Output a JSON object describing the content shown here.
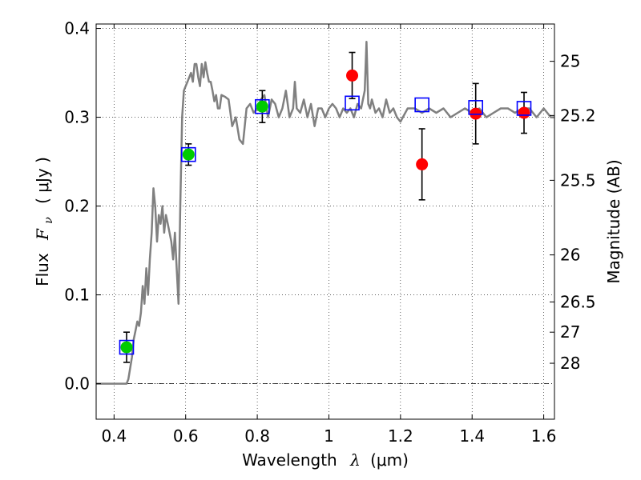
{
  "chart_data": {
    "type": "scatter",
    "title": "",
    "xlabel_prefix": "Wavelength",
    "xlabel_symbol": "λ",
    "xlabel_unit": "(μm)",
    "ylabel_prefix": "Flux",
    "ylabel_symbol": "F",
    "ylabel_subscript": "ν",
    "ylabel_unit": "( μJy )",
    "y2label": "Magnitude (AB)",
    "xlim": [
      0.35,
      1.63
    ],
    "ylim": [
      -0.04,
      0.405
    ],
    "x_ticks": [
      0.4,
      0.6,
      0.8,
      1.0,
      1.2,
      1.4,
      1.6
    ],
    "x_tick_labels": [
      "0.4",
      "0.6",
      "0.8",
      "1",
      "1.2",
      "1.4",
      "1.6"
    ],
    "y_ticks": [
      0.0,
      0.1,
      0.2,
      0.3,
      0.4
    ],
    "y_tick_labels": [
      "0.0",
      "0.1",
      "0.2",
      "0.3",
      "0.4"
    ],
    "y2_ticks": [
      {
        "label": "25",
        "flux": 0.363
      },
      {
        "label": "25.2",
        "flux": 0.302
      },
      {
        "label": "25.5",
        "flux": 0.229
      },
      {
        "label": "26",
        "flux": 0.145
      },
      {
        "label": "26.5",
        "flux": 0.092
      },
      {
        "label": "27",
        "flux": 0.058
      },
      {
        "label": "28",
        "flux": 0.023
      }
    ],
    "grid": true,
    "zero_line": true,
    "colors": {
      "model": "#808080",
      "green": "#00cc00",
      "red": "#ff0000",
      "square": "#0000ff",
      "errorbar": "#000000"
    },
    "series": [
      {
        "name": "model spectrum",
        "kind": "line",
        "x": [
          0.35,
          0.41,
          0.425,
          0.435,
          0.44,
          0.45,
          0.455,
          0.46,
          0.465,
          0.47,
          0.475,
          0.48,
          0.485,
          0.49,
          0.495,
          0.5,
          0.505,
          0.51,
          0.515,
          0.52,
          0.525,
          0.53,
          0.535,
          0.54,
          0.545,
          0.55,
          0.555,
          0.56,
          0.565,
          0.57,
          0.575,
          0.58,
          0.585,
          0.59,
          0.595,
          0.6,
          0.605,
          0.61,
          0.615,
          0.62,
          0.625,
          0.63,
          0.635,
          0.64,
          0.645,
          0.65,
          0.655,
          0.66,
          0.665,
          0.67,
          0.675,
          0.68,
          0.685,
          0.69,
          0.695,
          0.7,
          0.71,
          0.72,
          0.73,
          0.74,
          0.75,
          0.76,
          0.77,
          0.78,
          0.79,
          0.8,
          0.81,
          0.82,
          0.83,
          0.84,
          0.85,
          0.86,
          0.87,
          0.88,
          0.89,
          0.9,
          0.905,
          0.91,
          0.92,
          0.93,
          0.94,
          0.95,
          0.96,
          0.97,
          0.98,
          0.99,
          1.0,
          1.01,
          1.02,
          1.03,
          1.04,
          1.05,
          1.06,
          1.07,
          1.08,
          1.09,
          1.1,
          1.105,
          1.11,
          1.115,
          1.12,
          1.13,
          1.14,
          1.15,
          1.16,
          1.17,
          1.18,
          1.19,
          1.2,
          1.22,
          1.24,
          1.26,
          1.28,
          1.3,
          1.32,
          1.34,
          1.36,
          1.38,
          1.4,
          1.42,
          1.44,
          1.46,
          1.48,
          1.5,
          1.52,
          1.54,
          1.56,
          1.58,
          1.6,
          1.62,
          1.63
        ],
        "y": [
          0.0,
          0.0,
          0.0,
          0.0,
          0.005,
          0.03,
          0.05,
          0.06,
          0.07,
          0.065,
          0.08,
          0.11,
          0.09,
          0.13,
          0.1,
          0.14,
          0.17,
          0.22,
          0.2,
          0.16,
          0.19,
          0.18,
          0.2,
          0.17,
          0.19,
          0.18,
          0.17,
          0.16,
          0.14,
          0.17,
          0.13,
          0.09,
          0.2,
          0.3,
          0.33,
          0.335,
          0.34,
          0.345,
          0.35,
          0.34,
          0.36,
          0.36,
          0.345,
          0.335,
          0.36,
          0.345,
          0.362,
          0.35,
          0.34,
          0.34,
          0.33,
          0.318,
          0.325,
          0.31,
          0.31,
          0.325,
          0.323,
          0.32,
          0.29,
          0.3,
          0.275,
          0.27,
          0.31,
          0.315,
          0.305,
          0.31,
          0.32,
          0.325,
          0.3,
          0.32,
          0.315,
          0.3,
          0.31,
          0.33,
          0.3,
          0.31,
          0.34,
          0.31,
          0.305,
          0.32,
          0.3,
          0.315,
          0.29,
          0.31,
          0.31,
          0.3,
          0.31,
          0.315,
          0.31,
          0.3,
          0.31,
          0.305,
          0.31,
          0.3,
          0.315,
          0.31,
          0.33,
          0.385,
          0.315,
          0.31,
          0.32,
          0.305,
          0.31,
          0.3,
          0.32,
          0.305,
          0.31,
          0.3,
          0.295,
          0.31,
          0.31,
          0.305,
          0.31,
          0.305,
          0.31,
          0.3,
          0.305,
          0.31,
          0.305,
          0.31,
          0.3,
          0.305,
          0.31,
          0.31,
          0.305,
          0.31,
          0.31,
          0.3,
          0.31,
          0.3,
          0.3
        ]
      },
      {
        "name": "green points",
        "kind": "circle",
        "color": "green",
        "x": [
          0.435,
          0.608,
          0.814
        ],
        "y": [
          0.041,
          0.258,
          0.312
        ],
        "yerr": [
          0.017,
          0.012,
          0.018
        ]
      },
      {
        "name": "red points",
        "kind": "circle",
        "color": "red",
        "x": [
          1.065,
          1.26,
          1.41,
          1.545
        ],
        "y": [
          0.347,
          0.247,
          0.304,
          0.305
        ],
        "yerr": [
          0.026,
          0.04,
          0.034,
          0.023
        ]
      },
      {
        "name": "blue squares",
        "kind": "square",
        "color": "square",
        "x": [
          0.435,
          0.608,
          0.814,
          1.065,
          1.26,
          1.41,
          1.545
        ],
        "y": [
          0.041,
          0.258,
          0.312,
          0.316,
          0.314,
          0.311,
          0.31
        ]
      }
    ]
  }
}
